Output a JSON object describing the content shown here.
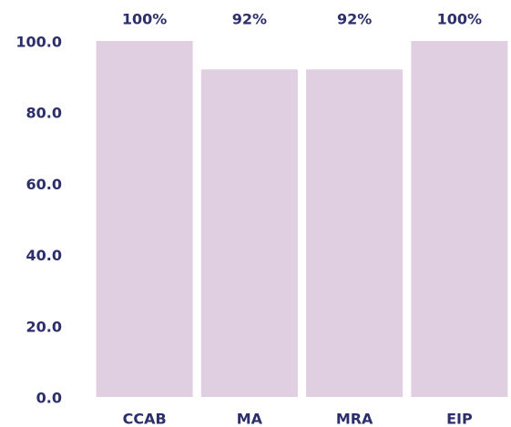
{
  "chart_data": {
    "type": "bar",
    "categories": [
      "CCAB",
      "MA",
      "MRA",
      "EIP"
    ],
    "values": [
      100,
      92,
      92,
      100
    ],
    "value_labels": [
      "100%",
      "92%",
      "92%",
      "100%"
    ],
    "color": "#e0cfe0",
    "ylim": [
      0,
      100
    ],
    "yticks": [
      {
        "value": 0,
        "label": "0.0"
      },
      {
        "value": 20,
        "label": "20.0"
      },
      {
        "value": 40,
        "label": "40.0"
      },
      {
        "value": 60,
        "label": "60.0"
      },
      {
        "value": 80,
        "label": "80.0"
      },
      {
        "value": 100,
        "label": "100.0"
      }
    ],
    "grid": false
  }
}
